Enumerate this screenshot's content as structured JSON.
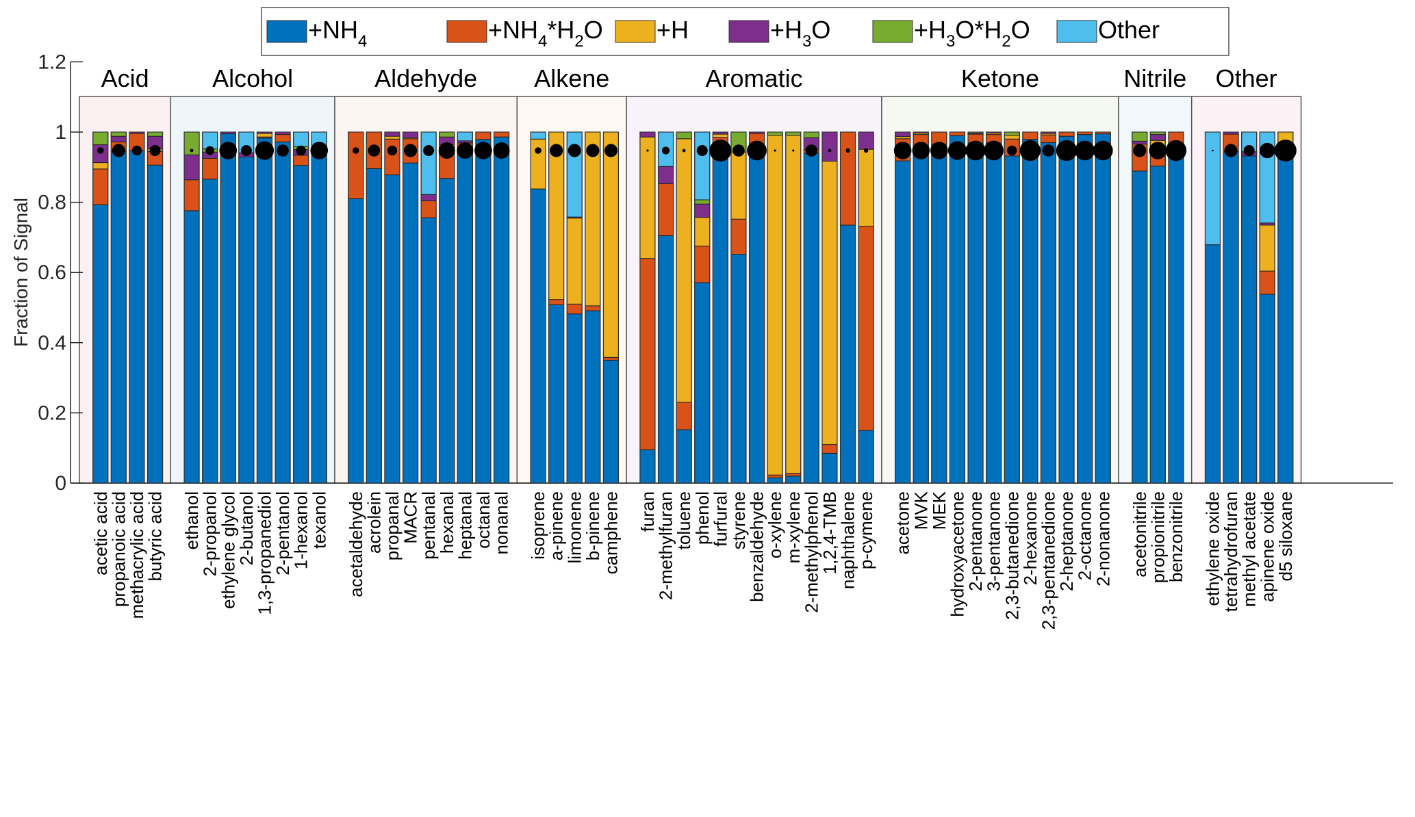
{
  "chart_data": {
    "type": "bar",
    "stacked": true,
    "title": "",
    "xlabel": "",
    "ylabel": "Fraction of Signal",
    "ylim": [
      0,
      1.2
    ],
    "yticks": [
      "0",
      "0.2",
      "0.4",
      "0.6",
      "0.8",
      "1",
      "1.2"
    ],
    "ytick_values": [
      0,
      0.2,
      0.4,
      0.6,
      0.8,
      1.0,
      1.2
    ],
    "grid": false,
    "legend_position": "top-center",
    "series": [
      {
        "name": "+NH4",
        "label_main": "+NH",
        "label_sub": "4",
        "label_rest": "",
        "color": "#0072BD"
      },
      {
        "name": "+NH4*H2O",
        "label_main": "+NH",
        "label_sub": "4",
        "label_rest": "*H",
        "label_sub2": "2",
        "label_rest2": "O",
        "color": "#D95319"
      },
      {
        "name": "+H",
        "label_main": "+H",
        "color": "#EDB120"
      },
      {
        "name": "+H3O",
        "label_main": "+H",
        "label_sub": "3",
        "label_rest": "O",
        "color": "#7E2F8E"
      },
      {
        "name": "+H3O*H2O",
        "label_main": "+H",
        "label_sub": "3",
        "label_rest": "O*H",
        "label_sub2": "2",
        "label_rest2": "O",
        "color": "#77AC30"
      },
      {
        "name": "Other",
        "label_main": "Other",
        "color": "#4DBEEE"
      }
    ],
    "groups": [
      {
        "name": "Acid",
        "bg": "#fcf1f2",
        "compounds": [
          {
            "name": "acetic acid",
            "dot": 0.3,
            "values": [
              0.793,
              0.102,
              0.018,
              0.051,
              0.036,
              0.0
            ]
          },
          {
            "name": "propanoic acid",
            "dot": 0.6,
            "values": [
              0.946,
              0.026,
              0.0,
              0.016,
              0.012,
              0.0
            ]
          },
          {
            "name": "methacrylic acid",
            "dot": 0.45,
            "values": [
              0.947,
              0.049,
              0.0,
              0.004,
              0.0,
              0.0
            ]
          },
          {
            "name": "butyric acid",
            "dot": 0.5,
            "values": [
              0.906,
              0.039,
              0.007,
              0.036,
              0.012,
              0.0
            ]
          }
        ]
      },
      {
        "name": "Alcohol",
        "bg": "#eff6fb",
        "compounds": [
          {
            "name": "ethanol",
            "dot": 0.15,
            "values": [
              0.776,
              0.088,
              0.0,
              0.071,
              0.065,
              0.0
            ]
          },
          {
            "name": "2-propanol",
            "dot": 0.4,
            "values": [
              0.866,
              0.059,
              0.0,
              0.018,
              0.009,
              0.048
            ]
          },
          {
            "name": "ethylene glycol",
            "dot": 0.8,
            "values": [
              0.995,
              0.0,
              0.0,
              0.005,
              0.0,
              0.0
            ]
          },
          {
            "name": "2-butanol",
            "dot": 0.5,
            "values": [
              0.929,
              0.0,
              0.0,
              0.012,
              0.0,
              0.059
            ]
          },
          {
            "name": "1,3-propanediol",
            "dot": 0.85,
            "values": [
              0.983,
              0.003,
              0.01,
              0.004,
              0.0,
              0.0
            ]
          },
          {
            "name": "2-pentanol",
            "dot": 0.55,
            "values": [
              0.972,
              0.021,
              0.0,
              0.007,
              0.0,
              0.0
            ]
          },
          {
            "name": "1-hexanol",
            "dot": 0.45,
            "values": [
              0.905,
              0.029,
              0.0,
              0.016,
              0.009,
              0.041
            ]
          },
          {
            "name": "texanol",
            "dot": 0.8,
            "values": [
              0.947,
              0.0,
              0.0,
              0.0,
              0.0,
              0.053
            ]
          }
        ]
      },
      {
        "name": "Aldehyde",
        "bg": "#fdf5f1",
        "compounds": [
          {
            "name": "acetaldehyde",
            "dot": 0.3,
            "values": [
              0.81,
              0.19,
              0.0,
              0.0,
              0.0,
              0.0
            ]
          },
          {
            "name": "acrolein",
            "dot": 0.55,
            "values": [
              0.896,
              0.104,
              0.0,
              0.0,
              0.0,
              0.0
            ]
          },
          {
            "name": "propanal",
            "dot": 0.45,
            "values": [
              0.878,
              0.102,
              0.008,
              0.012,
              0.0,
              0.0
            ]
          },
          {
            "name": "MACR",
            "dot": 0.6,
            "values": [
              0.912,
              0.069,
              0.003,
              0.016,
              0.0,
              0.0
            ]
          },
          {
            "name": "pentanal",
            "dot": 0.5,
            "values": [
              0.756,
              0.048,
              0.0,
              0.018,
              0.0,
              0.178
            ]
          },
          {
            "name": "hexanal",
            "dot": 0.75,
            "values": [
              0.868,
              0.084,
              0.012,
              0.022,
              0.014,
              0.0
            ]
          },
          {
            "name": "heptanal",
            "dot": 0.75,
            "values": [
              0.94,
              0.029,
              0.0,
              0.006,
              0.0,
              0.025
            ]
          },
          {
            "name": "octanal",
            "dot": 0.8,
            "values": [
              0.979,
              0.021,
              0.0,
              0.0,
              0.0,
              0.0
            ]
          },
          {
            "name": "nonanal",
            "dot": 0.75,
            "values": [
              0.986,
              0.014,
              0.0,
              0.0,
              0.0,
              0.0
            ]
          }
        ]
      },
      {
        "name": "Alkene",
        "bg": "#fdf9f2",
        "compounds": [
          {
            "name": "isoprene",
            "dot": 0.3,
            "values": [
              0.838,
              0.0,
              0.142,
              0.0,
              0.0,
              0.02
            ]
          },
          {
            "name": "a-pinene",
            "dot": 0.6,
            "values": [
              0.508,
              0.015,
              0.477,
              0.0,
              0.0,
              0.0
            ]
          },
          {
            "name": "limonene",
            "dot": 0.6,
            "values": [
              0.482,
              0.028,
              0.245,
              0.003,
              0.0,
              0.242
            ]
          },
          {
            "name": "b-pinene",
            "dot": 0.6,
            "values": [
              0.491,
              0.014,
              0.495,
              0.0,
              0.0,
              0.0
            ]
          },
          {
            "name": "camphene",
            "dot": 0.6,
            "values": [
              0.35,
              0.008,
              0.642,
              0.0,
              0.0,
              0.0
            ]
          }
        ]
      },
      {
        "name": "Aromatic",
        "bg": "#f6f4f8",
        "compounds": [
          {
            "name": "furan",
            "dot": 0.1,
            "values": [
              0.095,
              0.545,
              0.346,
              0.014,
              0.0,
              0.0
            ]
          },
          {
            "name": "2-methylfuran",
            "dot": 0.35,
            "values": [
              0.705,
              0.148,
              0.0,
              0.049,
              0.0,
              0.098
            ]
          },
          {
            "name": "toluene",
            "dot": 0.15,
            "values": [
              0.152,
              0.078,
              0.751,
              0.0,
              0.019,
              0.0
            ]
          },
          {
            "name": "phenol",
            "dot": 0.5,
            "values": [
              0.571,
              0.104,
              0.082,
              0.038,
              0.012,
              0.193
            ]
          },
          {
            "name": "furfural",
            "dot": 1.0,
            "values": [
              0.955,
              0.03,
              0.009,
              0.006,
              0.0,
              0.0
            ]
          },
          {
            "name": "styrene",
            "dot": 0.55,
            "values": [
              0.652,
              0.1,
              0.191,
              0.0,
              0.057,
              0.0
            ]
          },
          {
            "name": "benzaldehyde",
            "dot": 0.9,
            "values": [
              0.95,
              0.046,
              0.0,
              0.004,
              0.0,
              0.0
            ]
          },
          {
            "name": "o-xylene",
            "dot": 0.1,
            "values": [
              0.015,
              0.008,
              0.968,
              0.0,
              0.009,
              0.0
            ]
          },
          {
            "name": "m-xylene",
            "dot": 0.1,
            "values": [
              0.02,
              0.008,
              0.963,
              0.0,
              0.009,
              0.0
            ]
          },
          {
            "name": "2-methylphenol",
            "dot": 0.55,
            "values": [
              0.94,
              0.01,
              0.0,
              0.034,
              0.016,
              0.0
            ]
          },
          {
            "name": "1,2,4-TMB",
            "dot": 0.15,
            "values": [
              0.085,
              0.025,
              0.807,
              0.083,
              0.0,
              0.0
            ]
          },
          {
            "name": "naphthalene",
            "dot": 0.2,
            "values": [
              0.735,
              0.265,
              0.0,
              0.0,
              0.0,
              0.0
            ]
          },
          {
            "name": "p-cymene",
            "dot": 0.2,
            "values": [
              0.15,
              0.582,
              0.219,
              0.049,
              0.0,
              0.0
            ]
          }
        ]
      },
      {
        "name": "Ketone",
        "bg": "#f6f8f2",
        "compounds": [
          {
            "name": "acetone",
            "dot": 0.8,
            "values": [
              0.918,
              0.063,
              0.006,
              0.013,
              0.0,
              0.0
            ]
          },
          {
            "name": "MVK",
            "dot": 0.8,
            "values": [
              0.94,
              0.053,
              0.004,
              0.003,
              0.0,
              0.0
            ]
          },
          {
            "name": "MEK",
            "dot": 0.8,
            "values": [
              0.966,
              0.034,
              0.0,
              0.0,
              0.0,
              0.0
            ]
          },
          {
            "name": "hydroxyacetone",
            "dot": 0.85,
            "values": [
              0.99,
              0.01,
              0.0,
              0.0,
              0.0,
              0.0
            ]
          },
          {
            "name": "2-pentanone",
            "dot": 0.9,
            "values": [
              0.969,
              0.025,
              0.0,
              0.003,
              0.003,
              0.0
            ]
          },
          {
            "name": "3-pentanone",
            "dot": 0.9,
            "values": [
              0.969,
              0.024,
              0.004,
              0.003,
              0.0,
              0.0
            ]
          },
          {
            "name": "2,3-butanedione",
            "dot": 0.45,
            "values": [
              0.932,
              0.048,
              0.011,
              0.0,
              0.009,
              0.0
            ]
          },
          {
            "name": "2-hexanone",
            "dot": 0.95,
            "values": [
              0.979,
              0.021,
              0.0,
              0.0,
              0.0,
              0.0
            ]
          },
          {
            "name": "2,3-pentanedione",
            "dot": 0.55,
            "values": [
              0.97,
              0.022,
              0.004,
              0.004,
              0.0,
              0.0
            ]
          },
          {
            "name": "2-heptanone",
            "dot": 0.95,
            "values": [
              0.988,
              0.012,
              0.0,
              0.0,
              0.0,
              0.0
            ]
          },
          {
            "name": "2-octanone",
            "dot": 0.9,
            "values": [
              0.993,
              0.007,
              0.0,
              0.0,
              0.0,
              0.0
            ]
          },
          {
            "name": "2-nonanone",
            "dot": 0.9,
            "values": [
              0.995,
              0.005,
              0.0,
              0.0,
              0.0,
              0.0
            ]
          }
        ]
      },
      {
        "name": "Nitrile",
        "bg": "#f1f8fc",
        "compounds": [
          {
            "name": "acetonitrile",
            "dot": 0.6,
            "values": [
              0.889,
              0.077,
              0.0,
              0.008,
              0.026,
              0.0
            ]
          },
          {
            "name": "propionitrile",
            "dot": 0.8,
            "values": [
              0.903,
              0.048,
              0.025,
              0.017,
              0.007,
              0.0
            ]
          },
          {
            "name": "benzonitrile",
            "dot": 0.95,
            "values": [
              0.949,
              0.051,
              0.0,
              0.0,
              0.0,
              0.0
            ]
          }
        ]
      },
      {
        "name": "Other",
        "bg": "#fcf1f4",
        "compounds": [
          {
            "name": "ethylene oxide",
            "dot": 0.08,
            "values": [
              0.679,
              0.0,
              0.0,
              0.0,
              0.0,
              0.321
            ]
          },
          {
            "name": "tetrahydrofuran",
            "dot": 0.6,
            "values": [
              0.944,
              0.05,
              0.0,
              0.006,
              0.0,
              0.0
            ]
          },
          {
            "name": "methyl acetate",
            "dot": 0.5,
            "values": [
              0.932,
              0.0,
              0.0,
              0.012,
              0.0,
              0.056
            ]
          },
          {
            "name": "apinene oxide",
            "dot": 0.7,
            "values": [
              0.538,
              0.066,
              0.131,
              0.006,
              0.0,
              0.259
            ]
          },
          {
            "name": "d5 siloxane",
            "dot": 1.0,
            "values": [
              0.938,
              0.0,
              0.062,
              0.0,
              0.0,
              0.0
            ]
          }
        ]
      }
    ]
  }
}
